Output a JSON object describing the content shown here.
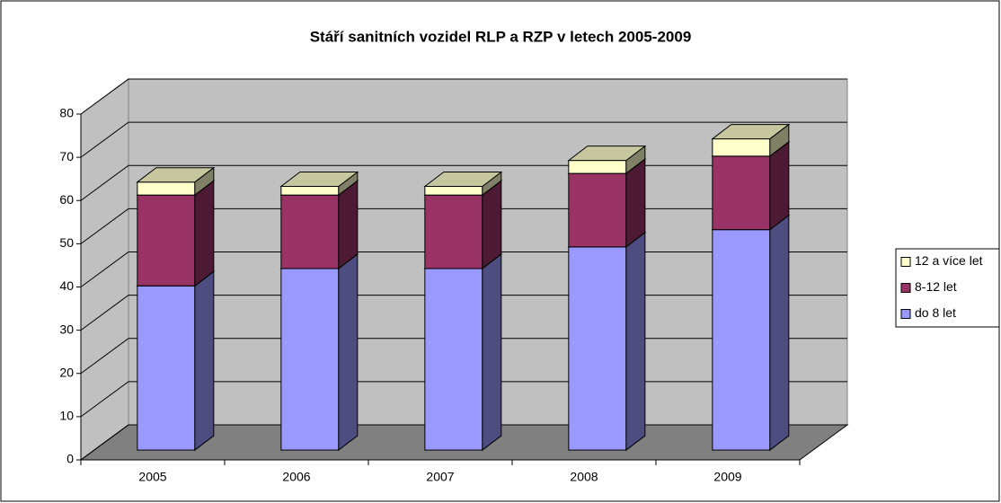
{
  "chart_data": {
    "type": "bar",
    "stacked": true,
    "title": "Stáří sanitních vozidel RLP a RZP v letech 2005-2009",
    "categories": [
      "2005",
      "2006",
      "2007",
      "2008",
      "2009"
    ],
    "series": [
      {
        "name": "do 8 let",
        "color": "#9999ff",
        "values": [
          38,
          42,
          42,
          47,
          51
        ]
      },
      {
        "name": "8-12 let",
        "color": "#993366",
        "values": [
          21,
          17,
          17,
          17,
          17
        ]
      },
      {
        "name": "12 a více let",
        "color": "#ffffcc",
        "values": [
          3,
          2,
          2,
          3,
          4
        ]
      }
    ],
    "ylim": [
      0,
      80
    ],
    "yticks": [
      0,
      10,
      20,
      30,
      40,
      50,
      60,
      70,
      80
    ],
    "grid": true,
    "legend": "right"
  }
}
